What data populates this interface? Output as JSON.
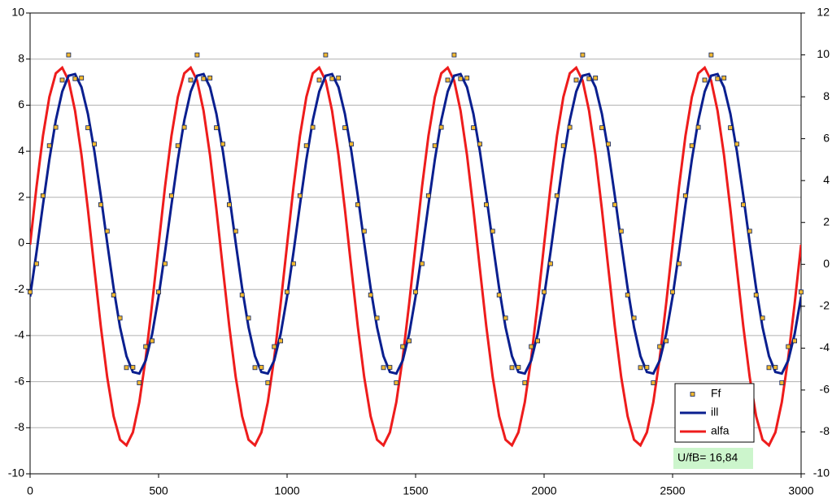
{
  "chart_data": {
    "type": "line",
    "x": [
      0,
      25,
      50,
      75,
      100,
      125,
      150,
      175,
      200,
      225,
      250,
      275,
      300,
      325,
      350,
      375,
      400,
      425,
      450,
      475,
      500,
      525,
      550,
      575,
      600,
      625,
      650,
      675,
      700,
      725,
      750,
      775,
      800,
      825,
      850,
      875,
      900,
      925,
      950,
      975,
      1000,
      1025,
      1050,
      1075,
      1100,
      1125,
      1150,
      1175,
      1200,
      1225,
      1250,
      1275,
      1300,
      1325,
      1350,
      1375,
      1400,
      1425,
      1450,
      1475,
      1500,
      1525,
      1550,
      1575,
      1600,
      1625,
      1650,
      1675,
      1700,
      1725,
      1750,
      1775,
      1800,
      1825,
      1850,
      1875,
      1900,
      1925,
      1950,
      1975,
      2000,
      2025,
      2050,
      2075,
      2100,
      2125,
      2150,
      2175,
      2200,
      2225,
      2250,
      2275,
      2300,
      2325,
      2350,
      2375,
      2400,
      2425,
      2450,
      2475,
      2500,
      2525,
      2550,
      2575,
      2600,
      2625,
      2650,
      2675,
      2700,
      2725,
      2750,
      2775,
      2800,
      2825,
      2850,
      2875,
      2900,
      2925,
      2950,
      2975,
      3000
    ],
    "series": [
      {
        "name": "Ff",
        "type": "scatter",
        "color": "#f0b830",
        "values": [
          -2.11,
          -0.88,
          2.07,
          4.24,
          5.04,
          7.09,
          8.18,
          7.15,
          7.18,
          5.02,
          4.31,
          1.68,
          0.53,
          -2.24,
          -3.24,
          -5.39,
          -5.38,
          -6.05,
          -4.48,
          -4.23,
          -2.11,
          -0.88,
          2.07,
          4.24,
          5.04,
          7.09,
          8.18,
          7.15,
          7.18,
          5.02,
          4.31,
          1.68,
          0.53,
          -2.24,
          -3.24,
          -5.39,
          -5.38,
          -6.05,
          -4.48,
          -4.23,
          -2.11,
          -0.88,
          2.07,
          4.24,
          5.04,
          7.09,
          8.18,
          7.15,
          7.18,
          5.02,
          4.31,
          1.68,
          0.53,
          -2.24,
          -3.24,
          -5.39,
          -5.38,
          -6.05,
          -4.48,
          -4.23,
          -2.11,
          -0.88,
          2.07,
          4.24,
          5.04,
          7.09,
          8.18,
          7.15,
          7.18,
          5.02,
          4.31,
          1.68,
          0.53,
          -2.24,
          -3.24,
          -5.39,
          -5.38,
          -6.05,
          -4.48,
          -4.23,
          -2.11,
          -0.88,
          2.07,
          4.24,
          5.04,
          7.09,
          8.18,
          7.15,
          7.18,
          5.02,
          4.31,
          1.68,
          0.53,
          -2.24,
          -3.24,
          -5.39,
          -5.38,
          -6.05,
          -4.48,
          -4.23,
          -2.11,
          -0.88,
          2.07,
          4.24,
          5.04,
          7.09,
          8.18,
          7.15,
          7.18,
          5.02,
          4.31,
          1.68,
          0.53,
          -2.24,
          -3.24,
          -5.39,
          -5.38,
          -6.05,
          -4.48,
          -4.23,
          -2.11
        ]
      },
      {
        "name": "ill",
        "type": "line",
        "color": "#0a1f8f",
        "values": [
          -2.31,
          -0.38,
          1.67,
          3.64,
          5.34,
          6.59,
          7.28,
          7.35,
          6.78,
          5.62,
          4.01,
          2.08,
          0.03,
          -1.94,
          -3.64,
          -4.89,
          -5.58,
          -5.65,
          -5.08,
          -3.93,
          -2.31,
          -0.38,
          1.67,
          3.64,
          5.34,
          6.59,
          7.28,
          7.35,
          6.78,
          5.62,
          4.01,
          2.08,
          0.03,
          -1.94,
          -3.64,
          -4.89,
          -5.58,
          -5.65,
          -5.08,
          -3.93,
          -2.31,
          -0.38,
          1.67,
          3.64,
          5.34,
          6.59,
          7.28,
          7.35,
          6.78,
          5.62,
          4.01,
          2.08,
          0.03,
          -1.94,
          -3.64,
          -4.89,
          -5.58,
          -5.65,
          -5.08,
          -3.93,
          -2.31,
          -0.38,
          1.67,
          3.64,
          5.34,
          6.59,
          7.28,
          7.35,
          6.78,
          5.62,
          4.01,
          2.08,
          0.03,
          -1.94,
          -3.64,
          -4.89,
          -5.58,
          -5.65,
          -5.08,
          -3.93,
          -2.31,
          -0.38,
          1.67,
          3.64,
          5.34,
          6.59,
          7.28,
          7.35,
          6.78,
          5.62,
          4.01,
          2.08,
          0.03,
          -1.94,
          -3.64,
          -4.89,
          -5.58,
          -5.65,
          -5.08,
          -3.93,
          -2.31,
          -0.38,
          1.67,
          3.64,
          5.34,
          6.59,
          7.28,
          7.35,
          6.78,
          5.62,
          4.01,
          2.08,
          0.03,
          -1.94,
          -3.64,
          -4.89,
          -5.58,
          -5.65,
          -5.08,
          -3.93,
          -2.31
        ]
      },
      {
        "name": "alfa",
        "type": "line",
        "axis": "y2",
        "color": "#ee1c1c",
        "values": [
          0.94,
          3.7,
          6.13,
          7.99,
          9.12,
          9.39,
          8.77,
          7.33,
          5.22,
          2.62,
          -0.19,
          -2.95,
          -5.38,
          -7.25,
          -8.37,
          -8.64,
          -8.02,
          -6.58,
          -4.46,
          -1.87,
          0.94,
          3.7,
          6.13,
          7.99,
          9.12,
          9.39,
          8.77,
          7.33,
          5.22,
          2.62,
          -0.19,
          -2.95,
          -5.38,
          -7.25,
          -8.37,
          -8.64,
          -8.02,
          -6.58,
          -4.46,
          -1.87,
          0.94,
          3.7,
          6.13,
          7.99,
          9.12,
          9.39,
          8.77,
          7.33,
          5.22,
          2.62,
          -0.19,
          -2.95,
          -5.38,
          -7.25,
          -8.37,
          -8.64,
          -8.02,
          -6.58,
          -4.46,
          -1.87,
          0.94,
          3.7,
          6.13,
          7.99,
          9.12,
          9.39,
          8.77,
          7.33,
          5.22,
          2.62,
          -0.19,
          -2.95,
          -5.38,
          -7.25,
          -8.37,
          -8.64,
          -8.02,
          -6.58,
          -4.46,
          -1.87,
          0.94,
          3.7,
          6.13,
          7.99,
          9.12,
          9.39,
          8.77,
          7.33,
          5.22,
          2.62,
          -0.19,
          -2.95,
          -5.38,
          -7.25,
          -8.37,
          -8.64,
          -8.02,
          -6.58,
          -4.46,
          -1.87,
          0.94,
          3.7,
          6.13,
          7.99,
          9.12,
          9.39,
          8.77,
          7.33,
          5.22,
          2.62,
          -0.19,
          -2.95,
          -5.38,
          -7.25,
          -8.37,
          -8.64,
          -8.02,
          -6.58,
          -4.46,
          -1.87,
          0.94
        ]
      }
    ],
    "xlim": [
      0,
      3000
    ],
    "xticks": [
      0,
      500,
      1000,
      1500,
      2000,
      2500,
      3000
    ],
    "ylim": [
      -10,
      10
    ],
    "yticks": [
      -10,
      -8,
      -6,
      -4,
      -2,
      0,
      2,
      4,
      6,
      8,
      10
    ],
    "y2lim": [
      -10,
      12
    ],
    "y2ticks": [
      -10,
      -8,
      -6,
      -4,
      -2,
      0,
      2,
      4,
      6,
      8,
      10,
      12
    ],
    "grid": true,
    "legend": "lower right",
    "annotation": "U/fB= 16,84"
  }
}
